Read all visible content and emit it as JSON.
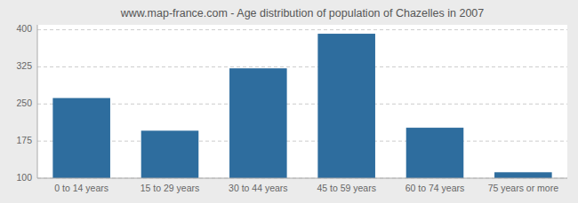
{
  "chart_data": {
    "type": "bar",
    "title": "www.map-france.com - Age distribution of population of Chazelles in 2007",
    "categories": [
      "0 to 14 years",
      "15 to 29 years",
      "30 to 44 years",
      "45 to 59 years",
      "60 to 74 years",
      "75 years or more"
    ],
    "values": [
      262,
      196,
      322,
      392,
      202,
      112
    ],
    "color": "#2e6d9e",
    "ylim": [
      100,
      410
    ],
    "yticks": [
      100,
      175,
      250,
      325,
      400
    ],
    "grid": true
  }
}
